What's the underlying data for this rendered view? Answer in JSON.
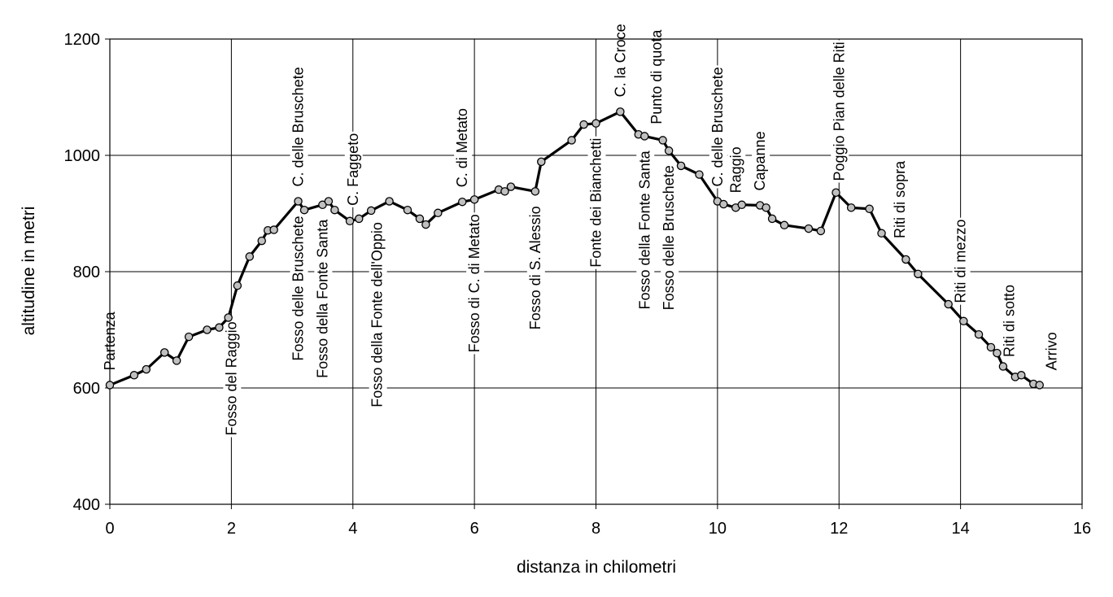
{
  "chart_data": {
    "type": "line",
    "title": "",
    "xlabel": "distanza in chilometri",
    "ylabel": "altitudine  in metri",
    "xlim": [
      0,
      16
    ],
    "ylim": [
      400,
      1200
    ],
    "xticks": [
      "0",
      "2",
      "4",
      "6",
      "8",
      "10",
      "12",
      "14",
      "16"
    ],
    "yticks": [
      "400",
      "600",
      "800",
      "1000",
      "1200"
    ],
    "grid": true,
    "legend": "none",
    "line_color": "#000000",
    "marker_color": "#c0c0c0",
    "series": [
      {
        "x": [
          0,
          0.4,
          0.6,
          0.9,
          1.1,
          1.3,
          1.6,
          1.8,
          1.95,
          2.1,
          2.3,
          2.5,
          2.6,
          2.7,
          3.1,
          3.2,
          3.5,
          3.6,
          3.7,
          3.95,
          4.1,
          4.3,
          4.6,
          4.9,
          5.1,
          5.2,
          5.4,
          5.8,
          6.0,
          6.4,
          6.5,
          6.6,
          7.0,
          7.1,
          7.6,
          7.8,
          8.0,
          8.4,
          8.7,
          8.8,
          9.1,
          9.2,
          9.4,
          9.7,
          10.0,
          10.1,
          10.3,
          10.4,
          10.7,
          10.8,
          10.9,
          11.1,
          11.5,
          11.7,
          11.95,
          12.2,
          12.5,
          12.7,
          13.1,
          13.3,
          13.8,
          14.05,
          14.3,
          14.5,
          14.6,
          14.7,
          14.9,
          15.0,
          15.2,
          15.3
        ],
        "y": [
          605,
          622,
          632,
          661,
          647,
          688,
          700,
          704,
          721,
          776,
          826,
          853,
          871,
          872,
          921,
          906,
          915,
          921,
          906,
          887,
          891,
          905,
          921,
          906,
          891,
          881,
          901,
          920,
          924,
          941,
          938,
          946,
          938,
          989,
          1026,
          1053,
          1055,
          1075,
          1036,
          1033,
          1026,
          1008,
          982,
          967,
          921,
          916,
          910,
          915,
          914,
          910,
          891,
          880,
          874,
          870,
          936,
          910,
          908,
          866,
          821,
          796,
          744,
          715,
          692,
          670,
          660,
          637,
          619,
          622,
          607,
          605
        ]
      }
    ],
    "annotations": [
      {
        "text": "Partenza",
        "x": 0,
        "side": "above"
      },
      {
        "text": "Fosso del Raggio",
        "x": 2.0,
        "side": "below"
      },
      {
        "text": "C. delle Bruschete",
        "x": 3.1,
        "side": "above"
      },
      {
        "text": "Fosso delle Bruschete",
        "x": 3.1,
        "side": "below"
      },
      {
        "text": "Fosso della Fonte Santa",
        "x": 3.5,
        "side": "below"
      },
      {
        "text": "C. Faggeto",
        "x": 4.0,
        "side": "above"
      },
      {
        "text": "Fosso della Fonte dell'Oppio",
        "x": 4.4,
        "side": "below"
      },
      {
        "text": "C. di Metato",
        "x": 5.8,
        "side": "above"
      },
      {
        "text": "Fosso di C. di Metato",
        "x": 6.0,
        "side": "below"
      },
      {
        "text": "Fosso di S. Alessio",
        "x": 7.0,
        "side": "below"
      },
      {
        "text": "Fonte dei Bianchetti",
        "x": 8.0,
        "side": "below"
      },
      {
        "text": "C. la Croce",
        "x": 8.4,
        "side": "above"
      },
      {
        "text": "Punto di quota",
        "x": 9.0,
        "side": "above"
      },
      {
        "text": "Fosso della Fonte Santa",
        "x": 8.8,
        "side": "below"
      },
      {
        "text": "Fosso delle Bruschete",
        "x": 9.2,
        "side": "below"
      },
      {
        "text": "C. delle Bruschete",
        "x": 10.0,
        "side": "above"
      },
      {
        "text": "Raggio",
        "x": 10.3,
        "side": "above"
      },
      {
        "text": "Capanne",
        "x": 10.7,
        "side": "above"
      },
      {
        "text": "Poggio Pian delle Riti",
        "x": 12.0,
        "side": "above"
      },
      {
        "text": "Riti di sopra",
        "x": 13.0,
        "side": "above"
      },
      {
        "text": "Riti di mezzo",
        "x": 14.0,
        "side": "above"
      },
      {
        "text": "Riti di sotto",
        "x": 14.8,
        "side": "above"
      },
      {
        "text": "Arrivo",
        "x": 15.5,
        "side": "above"
      }
    ]
  }
}
